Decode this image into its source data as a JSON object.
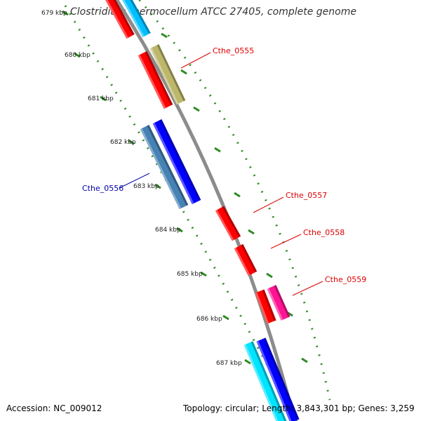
{
  "title": "Clostridium thermocellum ATCC 27405, complete genome",
  "accession": "Accession: NC_009012",
  "topology": "Topology: circular; Length: 3,843,301 bp; Genes: 3,259",
  "colors": {
    "backbone": "#8c8c8c",
    "ruler": "#2e8b22",
    "red": "#ff0000",
    "olive": "#bdb76b",
    "steel": "#4682b4",
    "blue": "#0000ff",
    "magenta": "#ff1493",
    "cyan": "#00e5ff",
    "skyblue": "#00bfff",
    "red_label": "#dd0000",
    "blue_label": "#0000aa"
  },
  "ruler_ticks": [
    "679 kbp",
    "680 kbp",
    "681 kbp",
    "682 kbp",
    "683 kbp",
    "684 kbp",
    "685 kbp",
    "686 kbp",
    "687 kbp"
  ],
  "gene_labels": [
    {
      "name": "Cthe_0555",
      "strand": "forward"
    },
    {
      "name": "Cthe_0556",
      "strand": "reverse"
    },
    {
      "name": "Cthe_0557",
      "strand": "forward"
    },
    {
      "name": "Cthe_0558",
      "strand": "forward"
    },
    {
      "name": "Cthe_0559",
      "strand": "forward"
    }
  ]
}
